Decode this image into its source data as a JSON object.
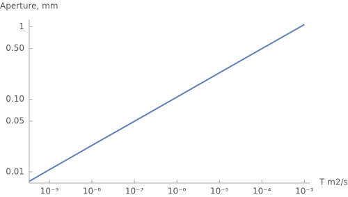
{
  "chart_data": {
    "type": "line",
    "y_label": "Aperture, mm",
    "x_label": "T m2/s",
    "log_x": true,
    "log_y": true,
    "x": [
      3.35e-10,
      1e-09,
      1e-08,
      1e-07,
      1e-06,
      1e-05,
      0.0001,
      0.001
    ],
    "series": [
      {
        "color": "#5e81b5",
        "values": [
          0.0074,
          0.0107,
          0.0231,
          0.0497,
          0.107,
          0.231,
          0.497,
          1.07
        ]
      }
    ],
    "xlim": [
      3.35e-10,
      0.00115
    ],
    "xticks": [
      {
        "value": 1e-09,
        "label": "10⁻⁹"
      },
      {
        "value": 1e-08,
        "label": "10⁻⁸"
      },
      {
        "value": 1e-07,
        "label": "10⁻⁷"
      },
      {
        "value": 1e-06,
        "label": "10⁻⁶"
      },
      {
        "value": 1e-05,
        "label": "10⁻⁵"
      },
      {
        "value": 0.0001,
        "label": "10⁻⁴"
      },
      {
        "value": 0.001,
        "label": "10⁻³"
      }
    ],
    "ylim": [
      0.007,
      1.2
    ],
    "yticks": [
      0.01,
      0.05,
      {
        "value": 0.1,
        "label": "0.10"
      },
      {
        "value": 0.5,
        "label": "0.50"
      },
      1
    ]
  }
}
